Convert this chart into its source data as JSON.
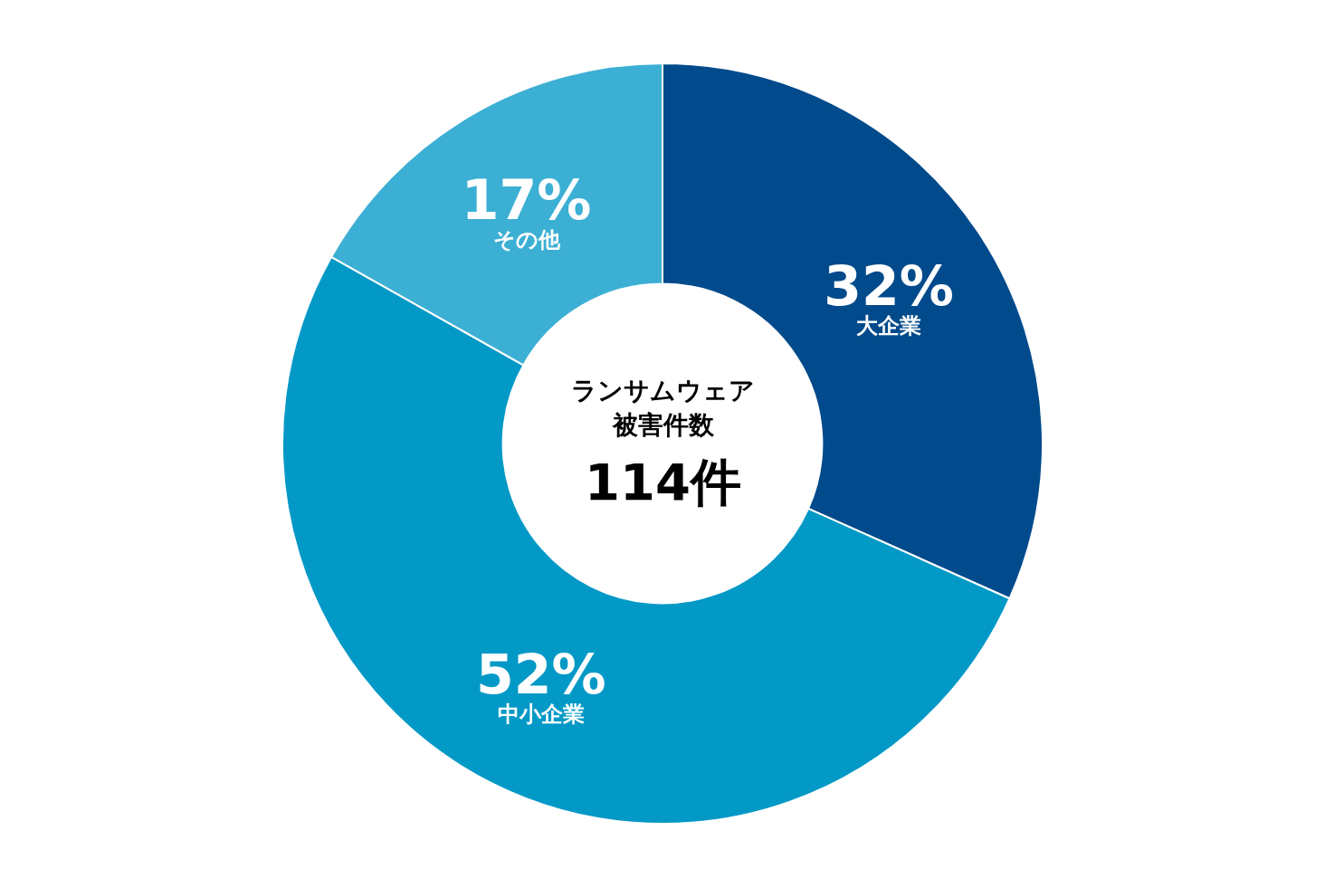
{
  "chart_data": {
    "type": "donut",
    "categories": [
      "大企業",
      "中小企業",
      "その他"
    ],
    "values": [
      32,
      52,
      17
    ],
    "value_labels": [
      "32%",
      "52%",
      "17%"
    ],
    "colors": [
      "#014a8c",
      "#0399c6",
      "#3cafd4"
    ],
    "annotations": [
      "ランサムウェア",
      "被害件数",
      "114件"
    ],
    "legend": false
  }
}
